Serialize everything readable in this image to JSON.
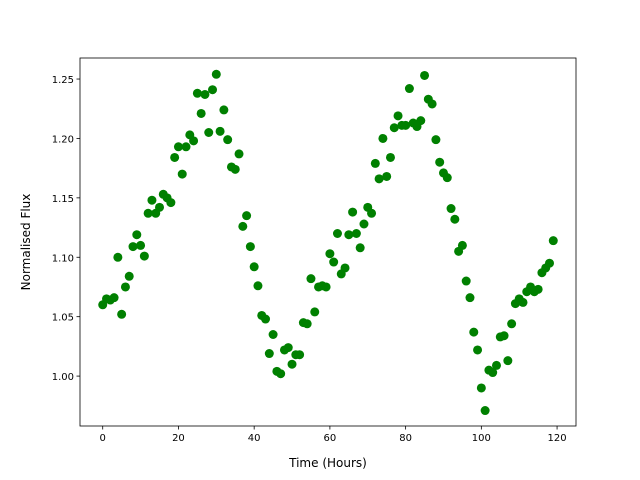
{
  "chart_data": {
    "type": "scatter",
    "x_label": "Time (Hours)",
    "y_label": "Normalised Flux",
    "color": "#008000",
    "x": [
      0,
      1,
      2,
      3,
      4,
      5,
      6,
      7,
      8,
      9,
      10,
      11,
      12,
      13,
      14,
      15,
      16,
      17,
      18,
      19,
      20,
      21,
      22,
      23,
      24,
      25,
      26,
      27,
      28,
      29,
      30,
      31,
      32,
      33,
      34,
      35,
      36,
      37,
      38,
      39,
      40,
      41,
      42,
      43,
      44,
      45,
      46,
      47,
      48,
      49,
      50,
      51,
      52,
      53,
      54,
      55,
      56,
      57,
      58,
      59,
      60,
      61,
      62,
      63,
      64,
      65,
      66,
      67,
      68,
      69,
      70,
      71,
      72,
      73,
      74,
      75,
      76,
      77,
      78,
      79,
      80,
      81,
      82,
      83,
      84,
      85,
      86,
      87,
      88,
      89,
      90,
      91,
      92,
      93,
      94,
      95,
      96,
      97,
      98,
      99,
      100,
      101,
      102,
      103,
      104,
      105,
      106,
      107,
      108,
      109,
      110,
      111,
      112,
      113,
      114,
      115,
      116,
      117,
      118,
      119
    ],
    "values": [
      1.06,
      1.065,
      1.064,
      1.066,
      1.1,
      1.052,
      1.075,
      1.084,
      1.109,
      1.119,
      1.11,
      1.101,
      1.137,
      1.148,
      1.137,
      1.142,
      1.153,
      1.15,
      1.146,
      1.184,
      1.193,
      1.17,
      1.193,
      1.203,
      1.198,
      1.238,
      1.221,
      1.237,
      1.205,
      1.241,
      1.254,
      1.206,
      1.224,
      1.199,
      1.176,
      1.174,
      1.187,
      1.126,
      1.135,
      1.109,
      1.092,
      1.076,
      1.051,
      1.048,
      1.019,
      1.035,
      1.004,
      1.002,
      1.022,
      1.024,
      1.01,
      1.018,
      1.018,
      1.045,
      1.044,
      1.082,
      1.054,
      1.075,
      1.076,
      1.075,
      1.103,
      1.096,
      1.12,
      1.086,
      1.091,
      1.119,
      1.138,
      1.12,
      1.108,
      1.128,
      1.142,
      1.137,
      1.179,
      1.166,
      1.2,
      1.168,
      1.184,
      1.209,
      1.219,
      1.211,
      1.211,
      1.242,
      1.213,
      1.21,
      1.215,
      1.253,
      1.233,
      1.229,
      1.199,
      1.18,
      1.171,
      1.167,
      1.141,
      1.132,
      1.105,
      1.11,
      1.08,
      1.066,
      1.037,
      1.022,
      0.99,
      0.971,
      1.005,
      1.003,
      1.009,
      1.033,
      1.034,
      1.013,
      1.044,
      1.061,
      1.065,
      1.062,
      1.071,
      1.075,
      1.071,
      1.073,
      1.087,
      1.091,
      1.095,
      1.114
    ],
    "xlim": [
      -6,
      125
    ],
    "ylim": [
      0.958,
      1.2677
    ],
    "xticks": [
      0,
      20,
      40,
      60,
      80,
      100,
      120
    ],
    "yticks": [
      {
        "value": 1.0,
        "label": "1.00"
      },
      {
        "value": 1.05,
        "label": "1.05"
      },
      {
        "value": 1.1,
        "label": "1.10"
      },
      {
        "value": 1.15,
        "label": "1.15"
      },
      {
        "value": 1.2,
        "label": "1.20"
      },
      {
        "value": 1.25,
        "label": "1.25"
      }
    ]
  }
}
